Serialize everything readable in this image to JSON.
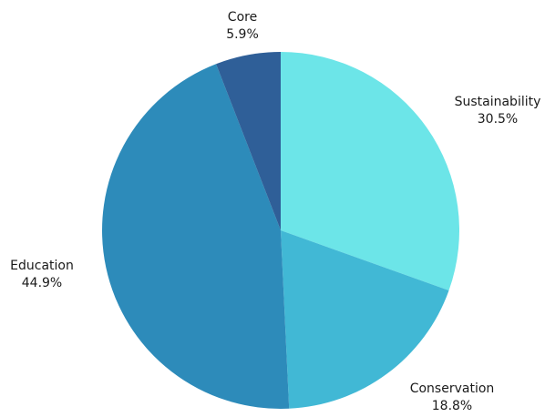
{
  "chart_data": {
    "type": "pie",
    "title": "",
    "slices": [
      {
        "label": "Sustainability",
        "value": 30.5,
        "value_label": "30.5%",
        "color": "#6ce5e8"
      },
      {
        "label": "Conservation",
        "value": 18.8,
        "value_label": "18.8%",
        "color": "#41b8d5"
      },
      {
        "label": "Education",
        "value": 44.9,
        "value_label": "44.9%",
        "color": "#2d8bba"
      },
      {
        "label": "Core",
        "value": 5.9,
        "value_label": "5.9%",
        "color": "#2f5f98"
      }
    ],
    "start_angle": "12 o'clock",
    "direction": "clockwise"
  }
}
